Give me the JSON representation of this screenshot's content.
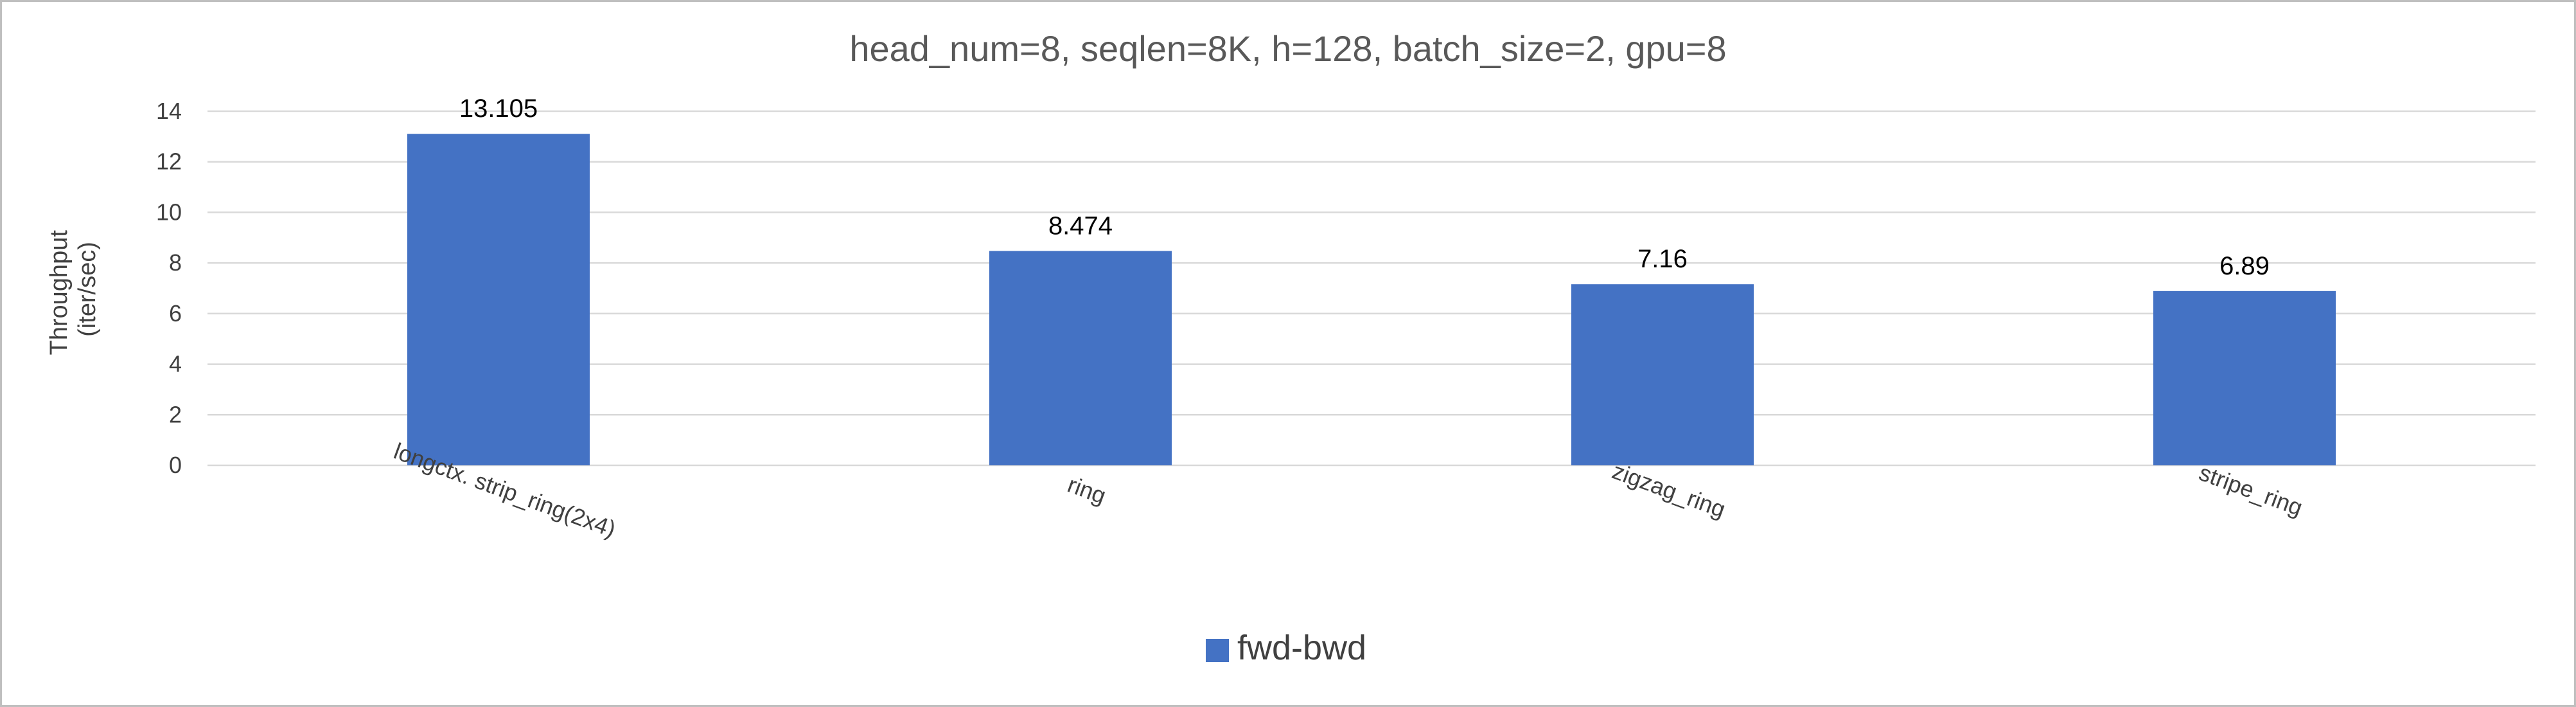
{
  "chart_data": {
    "type": "bar",
    "title": "head_num=8, seqlen=8K, h=128, batch_size=2, gpu=8",
    "ylabel_lines": [
      "Throughput",
      "(iter/sec)"
    ],
    "xlabel": "",
    "categories": [
      "longctx. strip_ring(2x4)",
      "ring",
      "zigzag_ring",
      "stripe_ring"
    ],
    "series": [
      {
        "name": "fwd-bwd",
        "color": "#4472c4",
        "values": [
          13.105,
          8.474,
          7.16,
          6.89
        ],
        "value_labels": [
          "13.105",
          "8.474",
          "7.16",
          "6.89"
        ]
      }
    ],
    "ylim": [
      0,
      14
    ],
    "yticks": [
      "0",
      "2",
      "4",
      "6",
      "8",
      "10",
      "12",
      "14"
    ],
    "grid": true,
    "legend_position": "bottom",
    "colors": {
      "gridline": "#d9d9d9",
      "text": "#404040",
      "frame": "#bfbfbf"
    }
  }
}
